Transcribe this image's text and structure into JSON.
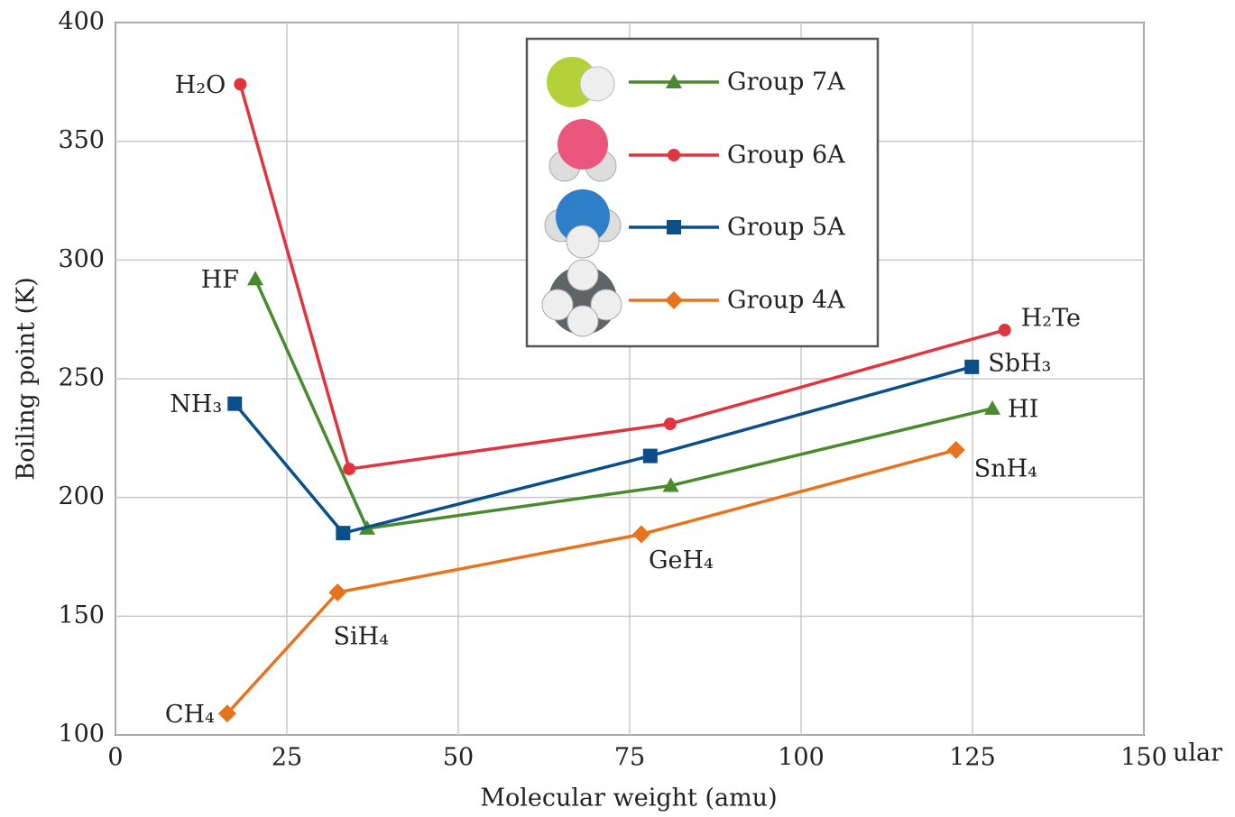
{
  "chart_data": {
    "type": "line",
    "x_label": "Molecular weight (amu)",
    "y_label": "Boiling point (K)",
    "annotation": "ular",
    "xlim": [
      0,
      150
    ],
    "xticks": [
      0,
      25,
      50,
      75,
      100,
      125,
      150
    ],
    "ylim": [
      100,
      400
    ],
    "yticks": [
      100,
      150,
      200,
      250,
      300,
      350,
      400
    ],
    "grid": true,
    "legend": "top",
    "series": [
      {
        "name": "Group 7A",
        "color": "#4a8a2e",
        "marker": "triangle",
        "x": [
          20.4,
          36.7,
          81,
          127.9
        ],
        "values": [
          292,
          187,
          205,
          237.5
        ],
        "point_labels": [
          "HF",
          null,
          null,
          "HI"
        ]
      },
      {
        "name": "Group 6A",
        "color": "#e0343f",
        "marker": "circle",
        "x": [
          18.2,
          34.1,
          80.9,
          129.7
        ],
        "values": [
          374,
          212,
          231,
          270.5
        ],
        "point_labels": [
          "H₂O",
          null,
          null,
          "H₂Te"
        ]
      },
      {
        "name": "Group 5A",
        "color": "#0b4f8a",
        "marker": "square",
        "x": [
          17.4,
          33.2,
          78,
          124.9
        ],
        "values": [
          239.5,
          185,
          217.5,
          255
        ],
        "point_labels": [
          "NH₃",
          null,
          null,
          "SbH₃"
        ]
      },
      {
        "name": "Group 4A",
        "color": "#e8731f",
        "marker": "diamond",
        "x": [
          16.3,
          32.4,
          76.7,
          122.6
        ],
        "values": [
          109,
          160,
          184.5,
          220
        ],
        "point_labels": [
          "CH₄",
          "SiH₄",
          "GeH₄",
          "SnH₄"
        ]
      }
    ]
  }
}
